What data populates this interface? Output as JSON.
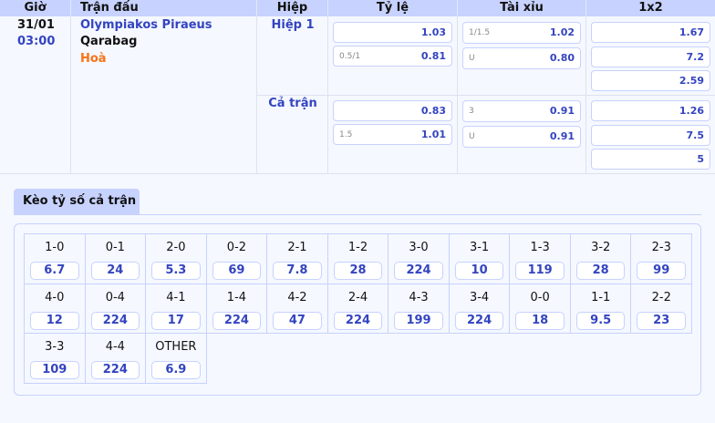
{
  "header": {
    "time": "Giờ",
    "match": "Trận đấu",
    "half": "Hiệp",
    "handicap": "Tỷ lệ",
    "overunder": "Tài xỉu",
    "x12": "1x2"
  },
  "match": {
    "date": "31/01",
    "time": "03:00",
    "home": "Olympiakos Piraeus",
    "away": "Qarabag",
    "draw": "Hoà"
  },
  "periods": [
    {
      "name": "Hiệp 1",
      "handicap": [
        {
          "line": "",
          "odds": "1.03"
        },
        {
          "line": "0.5/1",
          "odds": "0.81"
        }
      ],
      "overunder": [
        {
          "line": "1/1.5",
          "odds": "1.02"
        },
        {
          "line": "U",
          "odds": "0.80"
        }
      ],
      "x12": [
        "1.67",
        "7.2",
        "2.59"
      ]
    },
    {
      "name": "Cả trận",
      "handicap": [
        {
          "line": "",
          "odds": "0.83"
        },
        {
          "line": "1.5",
          "odds": "1.01"
        }
      ],
      "overunder": [
        {
          "line": "3",
          "odds": "0.91"
        },
        {
          "line": "U",
          "odds": "0.91"
        }
      ],
      "x12": [
        "1.26",
        "7.5",
        "5"
      ]
    }
  ],
  "correct_score": {
    "tab": "Kèo tỷ số cả trận",
    "items": [
      {
        "s": "1-0",
        "o": "6.7"
      },
      {
        "s": "0-1",
        "o": "24"
      },
      {
        "s": "2-0",
        "o": "5.3"
      },
      {
        "s": "0-2",
        "o": "69"
      },
      {
        "s": "2-1",
        "o": "7.8"
      },
      {
        "s": "1-2",
        "o": "28"
      },
      {
        "s": "3-0",
        "o": "224"
      },
      {
        "s": "3-1",
        "o": "10"
      },
      {
        "s": "1-3",
        "o": "119"
      },
      {
        "s": "3-2",
        "o": "28"
      },
      {
        "s": "2-3",
        "o": "99"
      },
      {
        "s": "4-0",
        "o": "12"
      },
      {
        "s": "0-4",
        "o": "224"
      },
      {
        "s": "4-1",
        "o": "17"
      },
      {
        "s": "1-4",
        "o": "224"
      },
      {
        "s": "4-2",
        "o": "47"
      },
      {
        "s": "2-4",
        "o": "224"
      },
      {
        "s": "4-3",
        "o": "199"
      },
      {
        "s": "3-4",
        "o": "224"
      },
      {
        "s": "0-0",
        "o": "18"
      },
      {
        "s": "1-1",
        "o": "9.5"
      },
      {
        "s": "2-2",
        "o": "23"
      },
      {
        "s": "3-3",
        "o": "109"
      },
      {
        "s": "4-4",
        "o": "224"
      },
      {
        "s": "OTHER",
        "o": "6.9"
      }
    ]
  }
}
